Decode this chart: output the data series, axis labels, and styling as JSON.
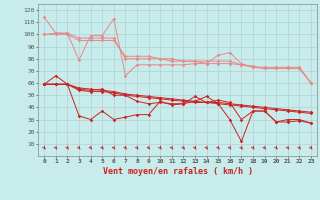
{
  "xlabel": "Vent moyen/en rafales ( km/h )",
  "background_color": "#c8ebeb",
  "grid_color": "#aacccc",
  "x": [
    0,
    1,
    2,
    3,
    4,
    5,
    6,
    7,
    8,
    9,
    10,
    11,
    12,
    13,
    14,
    15,
    16,
    17,
    18,
    19,
    20,
    21,
    22,
    23
  ],
  "line1": [
    114,
    101,
    101,
    79,
    99,
    99,
    113,
    66,
    75,
    75,
    75,
    75,
    75,
    76,
    76,
    83,
    85,
    76,
    73,
    72,
    72,
    72,
    72,
    60
  ],
  "line2": [
    100,
    101,
    101,
    97,
    97,
    97,
    97,
    80,
    80,
    80,
    80,
    78,
    78,
    78,
    78,
    78,
    78,
    75,
    73,
    73,
    73,
    73,
    73,
    60
  ],
  "line3": [
    100,
    100,
    100,
    95,
    95,
    95,
    95,
    82,
    82,
    82,
    80,
    80,
    78,
    78,
    76,
    76,
    76,
    75,
    74,
    72,
    72,
    72,
    72,
    60
  ],
  "line4": [
    59,
    66,
    59,
    55,
    54,
    55,
    50,
    50,
    45,
    43,
    44,
    43,
    43,
    49,
    44,
    46,
    44,
    30,
    37,
    37,
    28,
    28,
    29,
    27
  ],
  "line5": [
    59,
    59,
    59,
    33,
    30,
    37,
    30,
    32,
    34,
    34,
    45,
    42,
    43,
    45,
    49,
    43,
    30,
    12,
    37,
    37,
    28,
    30,
    30,
    27
  ],
  "line6": [
    59,
    59,
    59,
    54,
    53,
    53,
    52,
    50,
    49,
    48,
    47,
    46,
    45,
    44,
    44,
    43,
    42,
    41,
    40,
    39,
    38,
    37,
    36,
    35
  ],
  "line7": [
    59,
    59,
    59,
    56,
    55,
    54,
    53,
    51,
    50,
    49,
    48,
    47,
    46,
    45,
    44,
    44,
    43,
    42,
    41,
    40,
    39,
    38,
    37,
    36
  ],
  "ylim": [
    0,
    125
  ],
  "yticks": [
    10,
    20,
    30,
    40,
    50,
    60,
    70,
    80,
    90,
    100,
    110,
    120
  ],
  "light_pink": "#e88888",
  "dark_red": "#cc2222",
  "arrow_color": "#cc2222"
}
